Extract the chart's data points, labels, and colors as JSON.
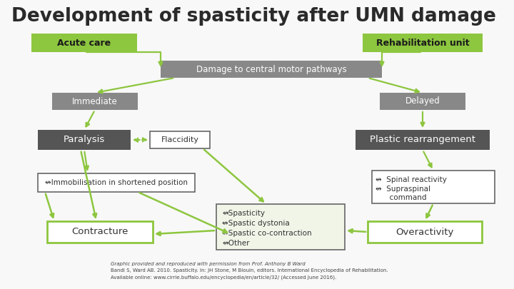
{
  "title": "Development of spasticity after UMN damage",
  "background_color": "#f8f8f8",
  "title_color": "#2a2a2a",
  "title_fontsize": 19,
  "green_box_color": "#8dc63f",
  "green_box_text_color": "#1a1a1a",
  "gray_box_color": "#888888",
  "gray_box_text_color": "#ffffff",
  "dark_box_color": "#555555",
  "dark_box_text_color": "#ffffff",
  "white_box_color": "#ffffff",
  "white_box_border_color": "#666666",
  "white_box_text_color": "#333333",
  "arrow_color": "#8dc63f",
  "footnote_text1": "Graphic provided and reproduced with permission from Prof. Anthony B Ward",
  "footnote_text2": "Bandi S, Ward AB. 2010. Spasticity. In: JH Stone, M Blouin, editors. International Encyclopedia of Rehabilitation.",
  "footnote_text3": "Available online: www.cirrie.buffalo.edu/encyclopedia/en/article/32/ (Accessed June 2016).",
  "footnote_fontsize": 5.0
}
